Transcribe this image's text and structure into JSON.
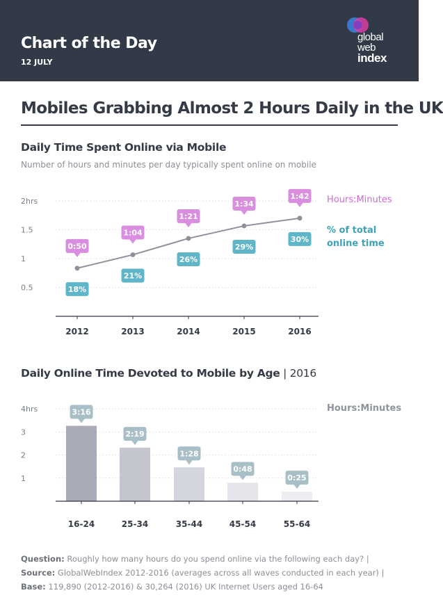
{
  "header": {
    "title": "Chart of the Day",
    "date": "12 JULY",
    "logo": {
      "line1": "global",
      "line2": "web",
      "line3": "index",
      "colors": [
        "#3a7fd9",
        "#d63ea6",
        "#7a3fc2"
      ]
    }
  },
  "main_title": "Mobiles Grabbing Almost 2 Hours Daily in the UK",
  "section1": {
    "title": "Daily Time Spent Online via Mobile",
    "subtitle": "Number of hours and minutes per day typically spent online on mobile",
    "legend_hours": "Hours:Minutes",
    "legend_pct": "% of total online time"
  },
  "section2": {
    "title_bold": "Daily Online Time Devoted to Mobile by Age",
    "title_rest": " | 2016",
    "legend_hours": "Hours:Minutes"
  },
  "footnote": {
    "q_label": "Question:",
    "q_text": " Roughly how many hours do you spend online via the following each day? | ",
    "src_label": "Source:",
    "src_text": " GlobalWebIndex 2012-2016 (averages across all waves conducted in each year) | ",
    "base_label": "Base:",
    "base_text": " 119,890 (2012-2016) & 30,264 (2016) UK Internet Users aged 16-64"
  },
  "chart_data": [
    {
      "type": "line",
      "x": [
        "2012",
        "2013",
        "2014",
        "2015",
        "2016"
      ],
      "y": [
        0.833,
        1.067,
        1.35,
        1.567,
        1.7
      ],
      "hour_labels": [
        "0:50",
        "1:04",
        "1:21",
        "1:34",
        "1:42"
      ],
      "pct_labels": [
        "18%",
        "21%",
        "26%",
        "29%",
        "30%"
      ],
      "ylim": [
        0,
        2
      ],
      "yticks": [
        0.5,
        1,
        1.5,
        2
      ],
      "ytick_labels": [
        "0.5",
        "1",
        "1.5",
        "2hrs"
      ],
      "grid": true,
      "colors": {
        "line": "#8d919b",
        "hours_bubble": "#d98ee0",
        "pct_bubble": "#5fb6c9"
      }
    },
    {
      "type": "bar",
      "categories": [
        "16-24",
        "25-34",
        "35-44",
        "45-54",
        "55-64"
      ],
      "values": [
        3.267,
        2.317,
        1.467,
        0.8,
        0.417
      ],
      "labels": [
        "3:16",
        "2:19",
        "1:28",
        "0:48",
        "0:25"
      ],
      "ylim": [
        0,
        4
      ],
      "yticks": [
        1,
        2,
        3,
        4
      ],
      "ytick_labels": [
        "1",
        "2",
        "3",
        "4hrs"
      ],
      "grid": true,
      "colors": {
        "bars": [
          "#a9acb8",
          "#c3c6cf",
          "#d4d6dd",
          "#e4e5ea",
          "#ecedf1"
        ],
        "bubble": "#a9bfc8"
      }
    }
  ]
}
